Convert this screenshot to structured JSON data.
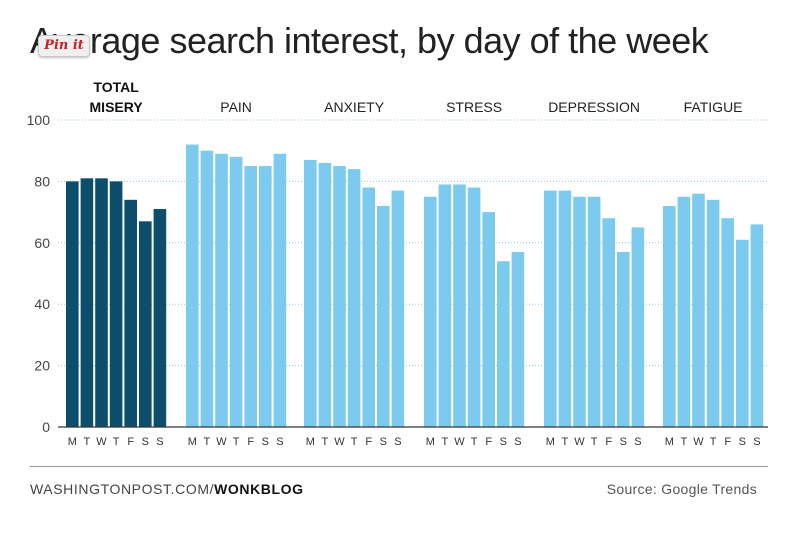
{
  "header": {
    "title": "Average search interest, by day of the week",
    "pin_label": "Pin it"
  },
  "colors": {
    "total_misery": "#0d4e6c",
    "category": "#7ccbef",
    "grid": "#8fc3df",
    "axis": "#333333"
  },
  "footer": {
    "site": "WASHINGTONPOST.COM/",
    "blog": "WONKBLOG",
    "source": "Source: Google Trends"
  },
  "chart_data": {
    "type": "bar",
    "title": "Average search interest, by day of the week",
    "xlabel": "",
    "ylabel": "",
    "ylim": [
      0,
      100
    ],
    "yticks": [
      0,
      20,
      40,
      60,
      80,
      100
    ],
    "grid": true,
    "categories": [
      "M",
      "T",
      "W",
      "T",
      "F",
      "S",
      "S"
    ],
    "series": [
      {
        "name": "TOTAL MISERY",
        "values": [
          80,
          81,
          81,
          80,
          74,
          67,
          71
        ]
      },
      {
        "name": "PAIN",
        "values": [
          92,
          90,
          89,
          88,
          85,
          85,
          89
        ]
      },
      {
        "name": "ANXIETY",
        "values": [
          87,
          86,
          85,
          84,
          78,
          72,
          77
        ]
      },
      {
        "name": "STRESS",
        "values": [
          75,
          79,
          79,
          78,
          70,
          54,
          57
        ]
      },
      {
        "name": "DEPRESSION",
        "values": [
          77,
          77,
          75,
          75,
          68,
          57,
          65
        ]
      },
      {
        "name": "FATIGUE",
        "values": [
          72,
          75,
          76,
          74,
          68,
          61,
          66
        ]
      }
    ]
  }
}
